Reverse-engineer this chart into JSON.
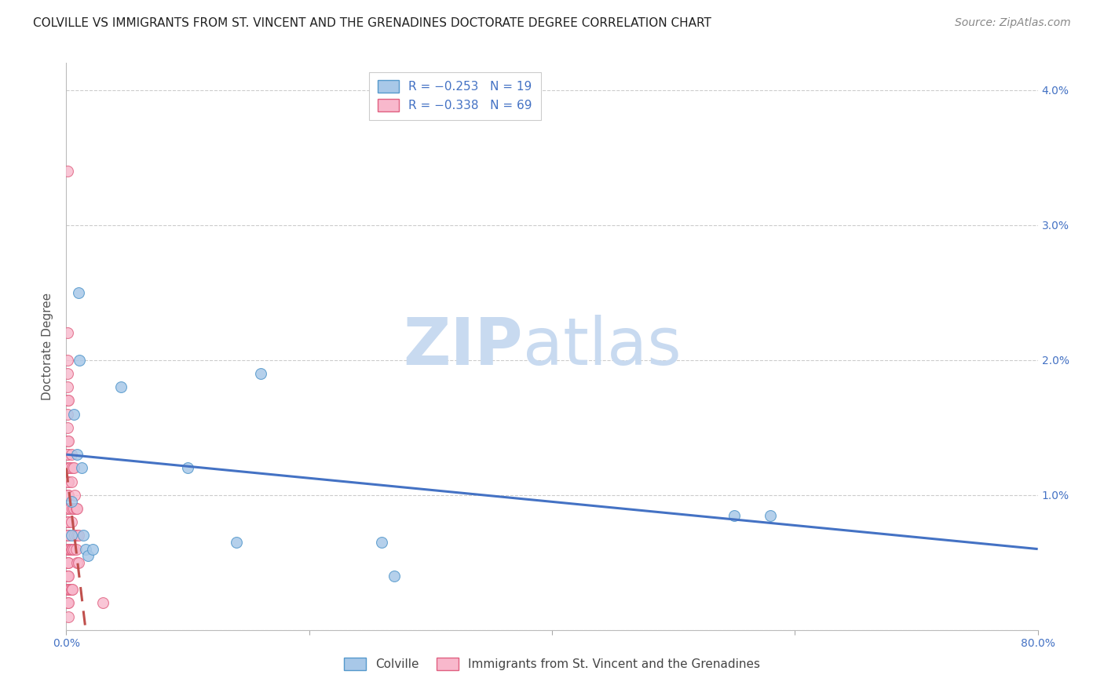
{
  "title": "COLVILLE VS IMMIGRANTS FROM ST. VINCENT AND THE GRENADINES DOCTORATE DEGREE CORRELATION CHART",
  "source": "Source: ZipAtlas.com",
  "ylabel": "Doctorate Degree",
  "watermark_zip": "ZIP",
  "watermark_atlas": "atlas",
  "xlim": [
    0.0,
    0.8
  ],
  "ylim": [
    0.0,
    0.042
  ],
  "xticks": [
    0.0,
    0.2,
    0.4,
    0.6,
    0.8
  ],
  "xtick_labels": [
    "0.0%",
    "",
    "",
    "",
    "80.0%"
  ],
  "yticks": [
    0.0,
    0.01,
    0.02,
    0.03,
    0.04
  ],
  "ytick_labels": [
    "",
    "1.0%",
    "2.0%",
    "3.0%",
    "4.0%"
  ],
  "colville_color": "#a8c8e8",
  "colville_edge": "#5599cc",
  "immigrant_color": "#f8b8cc",
  "immigrant_edge": "#e06080",
  "blue_line_color": "#4472C4",
  "pink_line_color": "#C0504D",
  "colville_x": [
    0.004,
    0.004,
    0.006,
    0.009,
    0.01,
    0.011,
    0.013,
    0.014,
    0.016,
    0.018,
    0.022,
    0.045,
    0.1,
    0.16,
    0.55,
    0.58,
    0.14,
    0.26,
    0.27
  ],
  "colville_y": [
    0.0095,
    0.007,
    0.016,
    0.013,
    0.025,
    0.02,
    0.012,
    0.007,
    0.006,
    0.0055,
    0.006,
    0.018,
    0.012,
    0.019,
    0.0085,
    0.0085,
    0.0065,
    0.0065,
    0.004
  ],
  "immigrant_x": [
    0.001,
    0.001,
    0.001,
    0.001,
    0.001,
    0.001,
    0.001,
    0.001,
    0.001,
    0.001,
    0.001,
    0.001,
    0.001,
    0.001,
    0.001,
    0.001,
    0.001,
    0.001,
    0.001,
    0.001,
    0.001,
    0.001,
    0.001,
    0.001,
    0.001,
    0.001,
    0.001,
    0.001,
    0.001,
    0.001,
    0.002,
    0.002,
    0.002,
    0.002,
    0.002,
    0.002,
    0.002,
    0.002,
    0.002,
    0.002,
    0.002,
    0.002,
    0.002,
    0.003,
    0.003,
    0.003,
    0.003,
    0.004,
    0.004,
    0.004,
    0.004,
    0.004,
    0.005,
    0.005,
    0.005,
    0.005,
    0.006,
    0.006,
    0.006,
    0.007,
    0.007,
    0.008,
    0.008,
    0.009,
    0.009,
    0.009,
    0.01,
    0.01,
    0.03
  ],
  "immigrant_y": [
    0.034,
    0.022,
    0.02,
    0.019,
    0.018,
    0.017,
    0.016,
    0.015,
    0.014,
    0.013,
    0.013,
    0.012,
    0.011,
    0.01,
    0.01,
    0.009,
    0.009,
    0.008,
    0.008,
    0.007,
    0.007,
    0.006,
    0.006,
    0.005,
    0.005,
    0.004,
    0.004,
    0.003,
    0.003,
    0.002,
    0.017,
    0.014,
    0.012,
    0.011,
    0.01,
    0.008,
    0.007,
    0.006,
    0.005,
    0.004,
    0.003,
    0.002,
    0.001,
    0.012,
    0.009,
    0.006,
    0.003,
    0.013,
    0.011,
    0.008,
    0.006,
    0.003,
    0.012,
    0.009,
    0.006,
    0.003,
    0.012,
    0.009,
    0.006,
    0.01,
    0.007,
    0.009,
    0.006,
    0.009,
    0.007,
    0.005,
    0.007,
    0.005,
    0.002
  ],
  "blue_line_x": [
    0.0,
    0.8
  ],
  "blue_line_y": [
    0.013,
    0.006
  ],
  "pink_line_x": [
    0.0,
    0.016
  ],
  "pink_line_y": [
    0.012,
    0.0
  ],
  "marker_size": 100,
  "title_fontsize": 11,
  "tick_fontsize": 10,
  "ylabel_fontsize": 11,
  "source_fontsize": 10,
  "watermark_fontsize": 60,
  "watermark_color": "#c8daf0",
  "background_color": "#ffffff",
  "grid_color": "#cccccc"
}
